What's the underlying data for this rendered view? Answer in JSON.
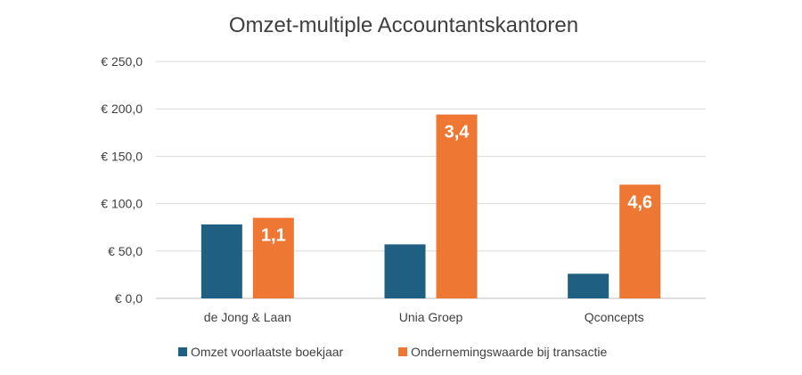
{
  "chart_data": {
    "type": "bar",
    "title": "Omzet-multiple Accountantskantoren",
    "xlabel": "",
    "ylabel": "",
    "categories": [
      "de Jong & Laan",
      "Unia Groep",
      "Qconcepts"
    ],
    "ylim": [
      0,
      250
    ],
    "yticks": [
      0,
      50,
      100,
      150,
      200,
      250
    ],
    "ytick_labels": [
      "€ 0,0",
      "€ 50,0",
      "€ 100,0",
      "€ 150,0",
      "€ 200,0",
      "€ 250,0"
    ],
    "grid": true,
    "legend_position": "bottom",
    "series": [
      {
        "name": "Omzet voorlaatste boekjaar",
        "color": "#1f5f82",
        "values": [
          78,
          57,
          26
        ]
      },
      {
        "name": "Ondernemingswaarde bij transactie",
        "color": "#ee7733",
        "values": [
          85,
          194,
          120
        ],
        "data_labels": [
          "1,1",
          "3,4",
          "4,6"
        ]
      }
    ]
  }
}
